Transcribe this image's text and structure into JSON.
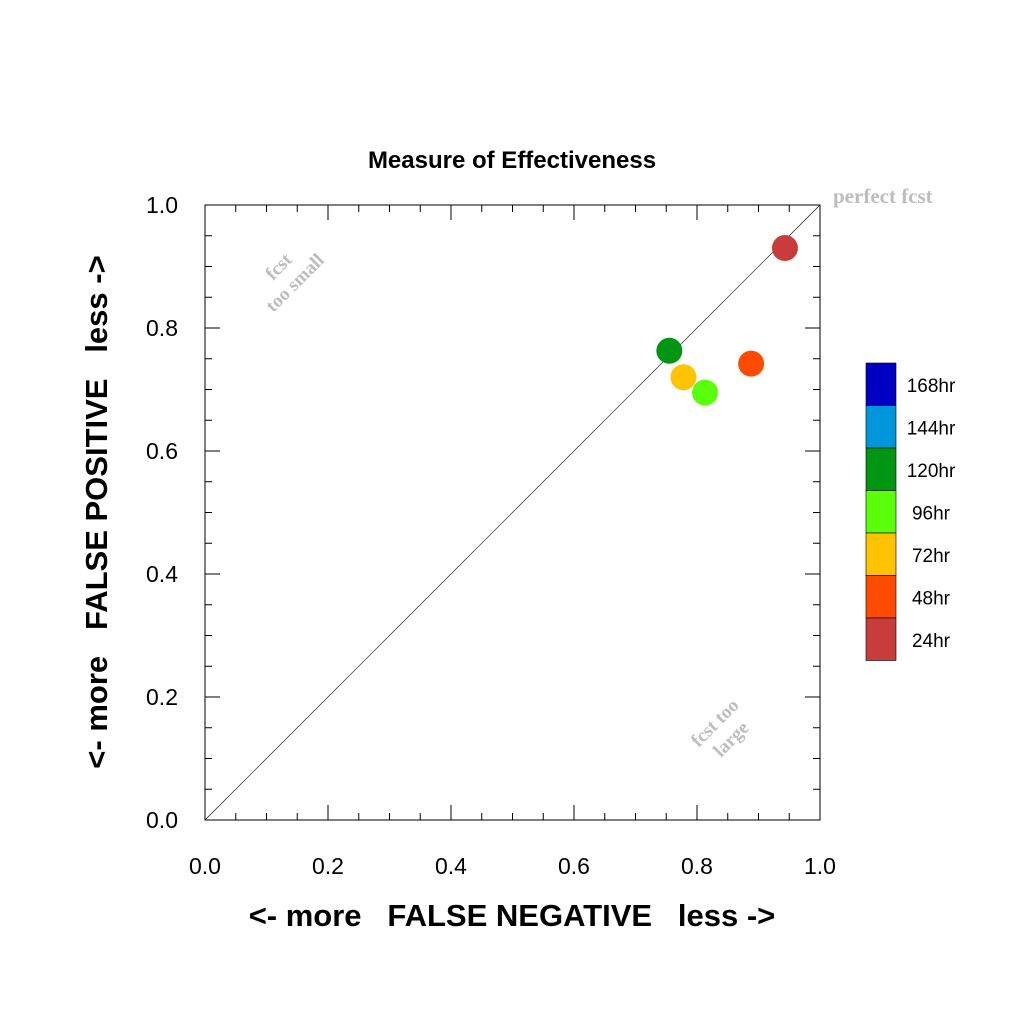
{
  "chart_data": {
    "type": "scatter",
    "title": "Measure of Effectiveness",
    "xlabel": "<- more   FALSE NEGATIVE   less ->",
    "ylabel": "<- more   FALSE POSITIVE   less ->",
    "xlim": [
      0,
      1
    ],
    "ylim": [
      0,
      1
    ],
    "x_ticks": [
      0,
      0.2,
      0.4,
      0.6,
      0.8,
      1.0
    ],
    "y_ticks": [
      0,
      0.2,
      0.4,
      0.6,
      0.8,
      1.0
    ],
    "tick_labels": [
      "0.0",
      "0.2",
      "0.4",
      "0.6",
      "0.8",
      "1.0"
    ],
    "grid": false,
    "legend_position": "right",
    "reference_line": "y = x",
    "annotations": {
      "perfect": "perfect fcst",
      "too_small": [
        "fcst",
        "too small"
      ],
      "too_large": [
        "fcst too",
        "large"
      ]
    },
    "legend": [
      {
        "label": "168hr",
        "color": "#0000c4"
      },
      {
        "label": "144hr",
        "color": "#0096dc"
      },
      {
        "label": "120hr",
        "color": "#009614"
      },
      {
        "label": "96hr",
        "color": "#5aff0a"
      },
      {
        "label": "72hr",
        "color": "#ffc300"
      },
      {
        "label": "48hr",
        "color": "#ff4b00"
      },
      {
        "label": "24hr",
        "color": "#c83c3c"
      }
    ],
    "series": [
      {
        "name": "24hr",
        "x": 0.943,
        "y": 0.93,
        "color": "#c83c3c"
      },
      {
        "name": "48hr",
        "x": 0.888,
        "y": 0.742,
        "color": "#ff4b00"
      },
      {
        "name": "72hr",
        "x": 0.778,
        "y": 0.72,
        "color": "#ffc300"
      },
      {
        "name": "96hr",
        "x": 0.813,
        "y": 0.695,
        "color": "#5aff0a"
      },
      {
        "name": "120hr",
        "x": 0.755,
        "y": 0.763,
        "color": "#009614"
      }
    ]
  }
}
